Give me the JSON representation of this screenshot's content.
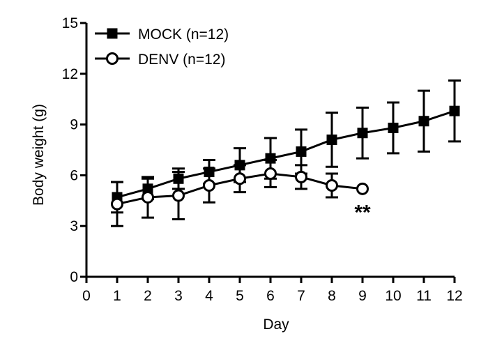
{
  "chart_data": {
    "type": "line",
    "title": "",
    "xlabel": "Day",
    "ylabel": "Body weight (g)",
    "xlim": [
      0,
      12
    ],
    "ylim": [
      0,
      15
    ],
    "xticks": [
      0,
      1,
      2,
      3,
      4,
      5,
      6,
      7,
      8,
      9,
      10,
      11,
      12
    ],
    "yticks": [
      0,
      3,
      6,
      9,
      12,
      15
    ],
    "grid": false,
    "legend_position": "top-left",
    "series": [
      {
        "name": "MOCK",
        "legend_label": "MOCK (n=12)",
        "marker": "filled-square",
        "color": "#000000",
        "x": [
          1,
          2,
          3,
          4,
          5,
          6,
          7,
          8,
          9,
          10,
          11,
          12
        ],
        "y": [
          4.7,
          5.2,
          5.8,
          6.2,
          6.6,
          7.0,
          7.4,
          8.1,
          8.5,
          8.8,
          9.2,
          9.8
        ],
        "error": [
          0.9,
          0.6,
          0.6,
          0.7,
          1.0,
          1.2,
          1.3,
          1.6,
          1.5,
          1.5,
          1.8,
          1.8
        ]
      },
      {
        "name": "DENV",
        "legend_label": "DENV (n=12)",
        "marker": "open-circle",
        "color": "#000000",
        "x": [
          1,
          2,
          3,
          4,
          5,
          6,
          7,
          8,
          9
        ],
        "y": [
          4.3,
          4.7,
          4.8,
          5.4,
          5.8,
          6.1,
          5.9,
          5.4,
          5.2
        ],
        "error": [
          1.3,
          1.2,
          1.4,
          1.0,
          0.8,
          0.8,
          0.7,
          0.7,
          0
        ]
      }
    ],
    "annotations": [
      {
        "text": "**",
        "x": 9,
        "y": 3.9
      }
    ]
  }
}
